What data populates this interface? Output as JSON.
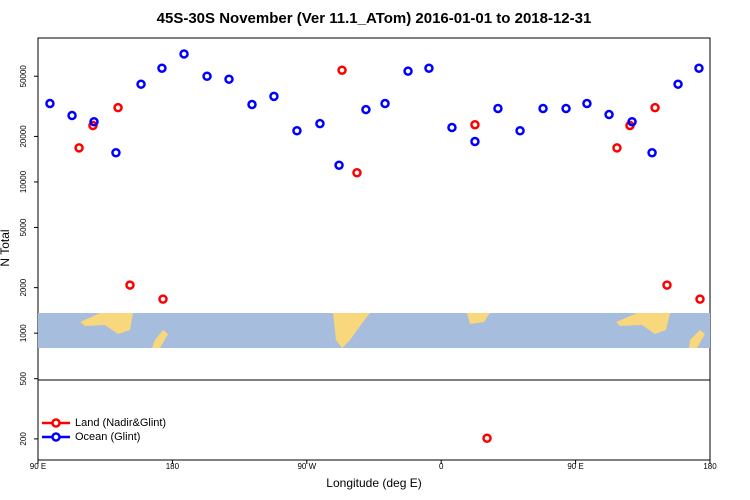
{
  "chart_data": {
    "type": "scatter",
    "title": "45S-30S November (Ver 11.1_ATom)   2016-01-01 to 2018-12-31",
    "x_label": "Longitude (deg E)",
    "y_label": "N Total",
    "xlim": [
      90,
      540
    ],
    "xticks": [
      {
        "value": 90,
        "label": "90 E"
      },
      {
        "value": 180,
        "label": "180"
      },
      {
        "value": 270,
        "label": "90 W"
      },
      {
        "value": 360,
        "label": "0"
      },
      {
        "value": 450,
        "label": "90 E"
      },
      {
        "value": 540,
        "label": "180"
      }
    ],
    "ylim": [
      145,
      89500
    ],
    "yticks": [
      200,
      500,
      1000,
      2000,
      5000,
      10000,
      20000,
      50000
    ],
    "log_y": true,
    "legend": "bottom-left",
    "series": [
      {
        "name": "Land (Nadir&Glint)",
        "color": "#ff0000",
        "x": [
          117.5,
          126.8,
          143.6,
          151.6,
          173.7,
          293.6,
          303.6,
          382.6,
          390.7,
          477.7,
          486.4,
          503.2,
          511.2,
          533.3
        ],
        "values": [
          16800,
          23600,
          31000,
          2080,
          1680,
          54800,
          11500,
          23900,
          202,
          16800,
          23600,
          31000,
          2080,
          1680
        ]
      },
      {
        "name": "Ocean (Glint)",
        "color": "#0000ff",
        "x": [
          98.0,
          112.8,
          127.5,
          142.2,
          159.0,
          173.0,
          187.8,
          203.2,
          217.9,
          233.3,
          248.0,
          263.4,
          278.8,
          291.6,
          309.6,
          322.4,
          337.8,
          351.8,
          367.2,
          382.6,
          398.0,
          412.8,
          428.2,
          443.6,
          457.6,
          472.4,
          487.8,
          501.2,
          518.6,
          532.6
        ],
        "values": [
          33000,
          27500,
          25000,
          15600,
          44300,
          56500,
          70200,
          50000,
          47800,
          32500,
          36800,
          21800,
          24300,
          12900,
          30100,
          33000,
          54000,
          56500,
          22900,
          18500,
          30600,
          21800,
          30600,
          30600,
          33000,
          27900,
          25000,
          15600,
          44300,
          56500
        ]
      }
    ]
  }
}
